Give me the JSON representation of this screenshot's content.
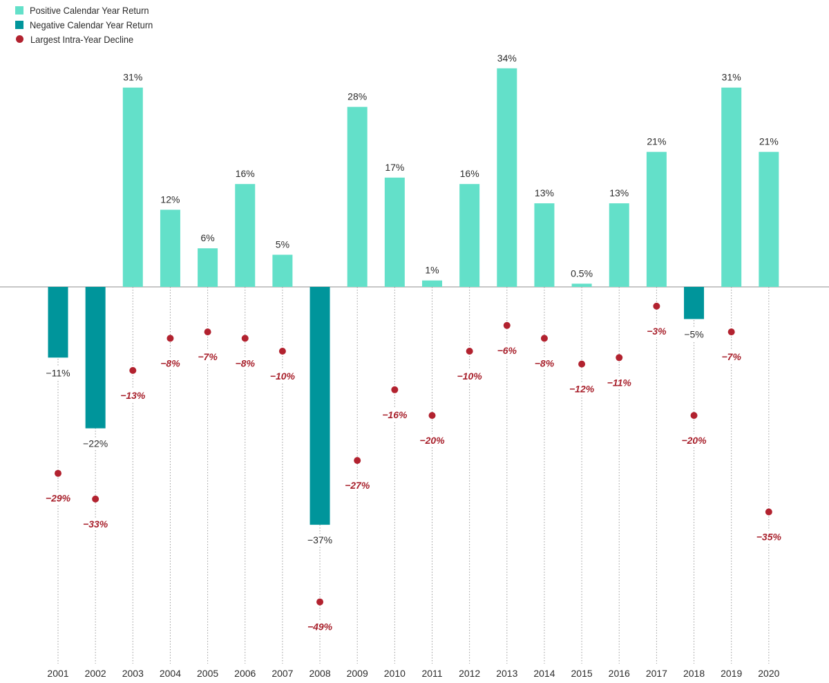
{
  "legend": [
    {
      "label": "Positive Calendar Year Return",
      "color": "#63e0c9",
      "shape": "square"
    },
    {
      "label": "Negative Calendar Year Return",
      "color": "#00959b",
      "shape": "square"
    },
    {
      "label": "Largest Intra-Year Decline",
      "color": "#b2222f",
      "shape": "circle"
    }
  ],
  "chart_data": {
    "type": "bar",
    "title": "",
    "xlabel": "",
    "ylabel": "",
    "ylim": [
      -58,
      36
    ],
    "grid": false,
    "legend_position": "top-left",
    "colors": {
      "positive": "#63e0c9",
      "negative": "#00959b",
      "decline": "#b2222f"
    },
    "categories": [
      "2001",
      "2002",
      "2003",
      "2004",
      "2005",
      "2006",
      "2007",
      "2008",
      "2009",
      "2010",
      "2011",
      "2012",
      "2013",
      "2014",
      "2015",
      "2016",
      "2017",
      "2018",
      "2019",
      "2020"
    ],
    "series": [
      {
        "name": "Calendar Year Return",
        "values": [
          -11,
          -22,
          31,
          12,
          6,
          16,
          5,
          -37,
          28,
          17,
          1,
          16,
          34,
          13,
          0.5,
          13,
          21,
          -5,
          31,
          21
        ],
        "labels": [
          "−11%",
          "−22%",
          "31%",
          "12%",
          "6%",
          "16%",
          "5%",
          "−37%",
          "28%",
          "17%",
          "1%",
          "16%",
          "34%",
          "13%",
          "0.5%",
          "13%",
          "21%",
          "−5%",
          "31%",
          "21%"
        ]
      },
      {
        "name": "Largest Intra-Year Decline",
        "values": [
          -29,
          -33,
          -13,
          -8,
          -7,
          -8,
          -10,
          -49,
          -27,
          -16,
          -20,
          -10,
          -6,
          -8,
          -12,
          -11,
          -3,
          -20,
          -7,
          -35
        ],
        "labels": [
          "−29%",
          "−33%",
          "−13%",
          "−8%",
          "−7%",
          "−8%",
          "−10%",
          "−49%",
          "−27%",
          "−16%",
          "−20%",
          "−10%",
          "−6%",
          "−8%",
          "−12%",
          "−11%",
          "−3%",
          "−20%",
          "−7%",
          "−35%"
        ]
      }
    ]
  }
}
